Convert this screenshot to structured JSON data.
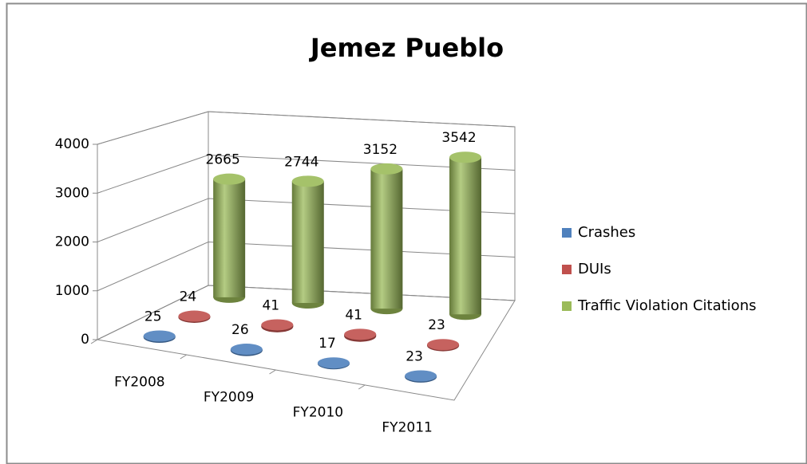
{
  "chart_data": {
    "type": "bar3d",
    "title": "Jemez Pueblo",
    "categories": [
      "FY2008",
      "FY2009",
      "FY2010",
      "FY2011"
    ],
    "series": [
      {
        "name": "Crashes",
        "color": "#4f81bd",
        "values": [
          25,
          26,
          17,
          23
        ]
      },
      {
        "name": "DUIs",
        "color": "#c0504d",
        "values": [
          24,
          41,
          41,
          23
        ]
      },
      {
        "name": "Traffic Violation Citations",
        "color": "#9bbb59",
        "values": [
          2665,
          2744,
          3152,
          3542
        ]
      }
    ],
    "ylim": [
      0,
      4000
    ],
    "yticks": [
      0,
      1000,
      2000,
      3000,
      4000
    ],
    "grid": true,
    "legend": "right"
  }
}
